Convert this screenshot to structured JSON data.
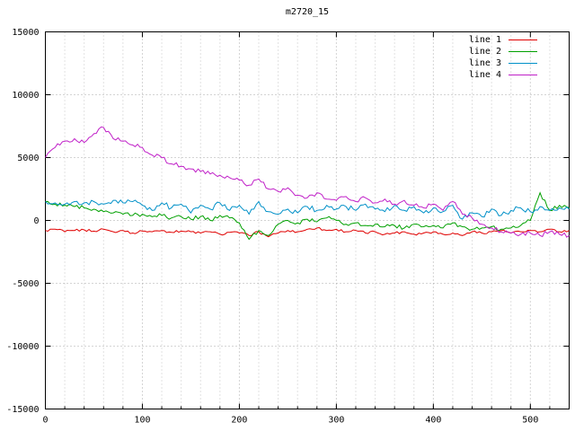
{
  "chart_data": {
    "type": "line",
    "title": "m2720_15",
    "xlabel": "",
    "ylabel": "",
    "xlim": [
      0,
      540
    ],
    "ylim": [
      -15000,
      15000
    ],
    "xticks": [
      0,
      100,
      200,
      300,
      400,
      500
    ],
    "yticks": [
      -15000,
      -10000,
      -5000,
      0,
      5000,
      10000,
      15000
    ],
    "grid": true,
    "legend_position": "top-right-inside",
    "x_start": 0,
    "x_step": 10,
    "series": [
      {
        "name": "line 1",
        "color": "#e00000",
        "noise_amp": 100,
        "values": [
          -800,
          -700,
          -900,
          -800,
          -750,
          -850,
          -700,
          -900,
          -800,
          -1000,
          -850,
          -900,
          -800,
          -950,
          -850,
          -900,
          -1000,
          -900,
          -1100,
          -950,
          -1000,
          -1200,
          -900,
          -1300,
          -1000,
          -800,
          -900,
          -700,
          -600,
          -800,
          -700,
          -900,
          -800,
          -1000,
          -900,
          -1100,
          -1000,
          -900,
          -1100,
          -1000,
          -900,
          -1100,
          -1000,
          -1200,
          -900,
          -1000,
          -900,
          -800,
          -1000,
          -900,
          -800,
          -900,
          -700,
          -900,
          -800
        ]
      },
      {
        "name": "line 2",
        "color": "#00a000",
        "noise_amp": 160,
        "values": [
          1500,
          1300,
          1200,
          1100,
          1000,
          900,
          700,
          600,
          500,
          400,
          500,
          300,
          400,
          200,
          300,
          100,
          300,
          0,
          400,
          200,
          -200,
          -1500,
          -800,
          -1200,
          -300,
          0,
          -200,
          100,
          -100,
          200,
          0,
          -300,
          -200,
          -400,
          -300,
          -500,
          -400,
          -600,
          -300,
          -500,
          -400,
          -600,
          -200,
          -500,
          -700,
          -600,
          -500,
          -700,
          -600,
          -400,
          0,
          2200,
          800,
          1200,
          1000
        ]
      },
      {
        "name": "line 3",
        "color": "#0090c8",
        "noise_amp": 200,
        "values": [
          1500,
          1400,
          1300,
          1500,
          1400,
          1500,
          1300,
          1600,
          1400,
          1500,
          1200,
          800,
          1400,
          1000,
          1300,
          600,
          1200,
          900,
          1400,
          800,
          1200,
          500,
          1500,
          700,
          500,
          900,
          600,
          1100,
          800,
          1200,
          900,
          1100,
          800,
          1300,
          900,
          700,
          1200,
          800,
          1100,
          600,
          1000,
          700,
          1200,
          100,
          600,
          300,
          900,
          400,
          800,
          1000,
          700,
          1100,
          800,
          1000,
          900
        ]
      },
      {
        "name": "line 4",
        "color": "#c020c8",
        "noise_amp": 180,
        "values": [
          5000,
          5800,
          6300,
          6500,
          6200,
          6900,
          7400,
          6500,
          6300,
          6000,
          5800,
          5200,
          5000,
          4500,
          4300,
          4100,
          3900,
          3700,
          3600,
          3400,
          3200,
          2800,
          3300,
          2500,
          2300,
          2600,
          2000,
          1800,
          2200,
          1700,
          1600,
          1900,
          1500,
          1800,
          1400,
          1700,
          1300,
          1600,
          1200,
          1000,
          1300,
          800,
          1500,
          500,
          200,
          -300,
          -600,
          -900,
          -1000,
          -1100,
          -1000,
          -1200,
          -900,
          -1100,
          -1200
        ]
      }
    ]
  }
}
